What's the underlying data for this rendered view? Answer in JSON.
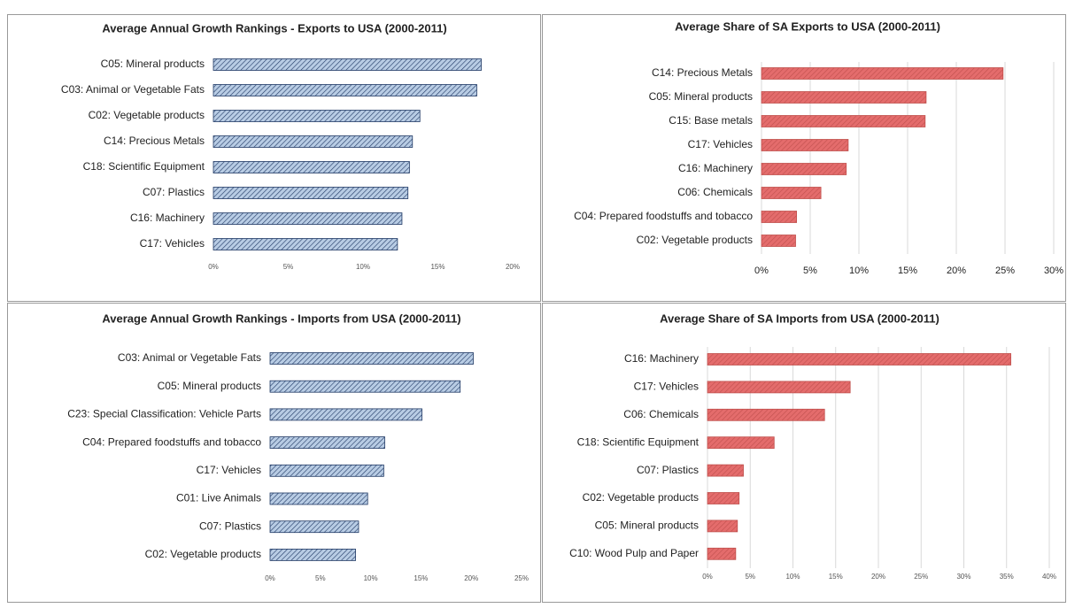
{
  "chart_data": [
    {
      "type": "bar",
      "orientation": "horizontal",
      "title": "Average Annual Growth Rankings - Exports to USA (2000-2011)",
      "categories": [
        "C05: Mineral products",
        "C03: Animal or Vegetable Fats",
        "C02: Vegetable products",
        "C14: Precious Metals",
        "C18: Scientific Equipment",
        "C07: Plastics",
        "C16: Machinery",
        "C17: Vehicles"
      ],
      "values": [
        17.9,
        17.6,
        13.8,
        13.3,
        13.1,
        13.0,
        12.6,
        12.3
      ],
      "color": "#b8cce4",
      "grid": false,
      "xlim": [
        0,
        20
      ],
      "xticks": [
        {
          "value": 0,
          "label": "0%"
        },
        {
          "value": 5,
          "label": "5%"
        },
        {
          "value": 10,
          "label": "10%"
        },
        {
          "value": 15,
          "label": "15%"
        },
        {
          "value": 20,
          "label": "20%"
        }
      ]
    },
    {
      "type": "bar",
      "orientation": "horizontal",
      "title": "Average Share of SA Exports to USA (2000-2011)",
      "categories": [
        "C14: Precious Metals",
        "C05: Mineral products",
        "C15: Base metals",
        "C17: Vehicles",
        "C16: Machinery",
        "C06: Chemicals",
        "C04: Prepared foodstuffs and tobacco",
        "C02: Vegetable products"
      ],
      "values": [
        24.8,
        16.9,
        16.8,
        8.9,
        8.7,
        6.1,
        3.6,
        3.5
      ],
      "color": "#e46c6c",
      "grid": true,
      "xlim": [
        0,
        30
      ],
      "xticks": [
        {
          "value": 0,
          "label": "0%"
        },
        {
          "value": 5,
          "label": "5%"
        },
        {
          "value": 10,
          "label": "10%"
        },
        {
          "value": 15,
          "label": "15%"
        },
        {
          "value": 20,
          "label": "20%"
        },
        {
          "value": 25,
          "label": "25%"
        },
        {
          "value": 30,
          "label": "30%"
        }
      ]
    },
    {
      "type": "bar",
      "orientation": "horizontal",
      "title": "Average Annual Growth Rankings - Imports from USA (2000-2011)",
      "categories": [
        "C03: Animal or Vegetable Fats",
        "C05: Mineral products",
        "C23: Special Classification: Vehicle Parts",
        "C04: Prepared foodstuffs and tobacco",
        "C17: Vehicles",
        "C01: Live Animals",
        "C07: Plastics",
        "C02: Vegetable products"
      ],
      "values": [
        20.2,
        18.9,
        15.1,
        11.4,
        11.3,
        9.7,
        8.8,
        8.5
      ],
      "color": "#b8cce4",
      "grid": false,
      "xlim": [
        0,
        25
      ],
      "xticks": [
        {
          "value": 0,
          "label": "0%"
        },
        {
          "value": 5,
          "label": "5%"
        },
        {
          "value": 10,
          "label": "10%"
        },
        {
          "value": 15,
          "label": "15%"
        },
        {
          "value": 20,
          "label": "20%"
        },
        {
          "value": 25,
          "label": "25%"
        }
      ]
    },
    {
      "type": "bar",
      "orientation": "horizontal",
      "title": "Average Share of SA Imports from USA (2000-2011)",
      "categories": [
        "C16: Machinery",
        "C17: Vehicles",
        "C06: Chemicals",
        "C18: Scientific Equipment",
        "C07: Plastics",
        "C02: Vegetable products",
        "C05: Mineral products",
        "C10: Wood Pulp and Paper"
      ],
      "values": [
        35.5,
        16.7,
        13.7,
        7.8,
        4.2,
        3.7,
        3.5,
        3.3
      ],
      "color": "#e46c6c",
      "grid": true,
      "xlim": [
        0,
        40
      ],
      "xticks": [
        {
          "value": 0,
          "label": "0%"
        },
        {
          "value": 5,
          "label": "5%"
        },
        {
          "value": 10,
          "label": "10%"
        },
        {
          "value": 15,
          "label": "15%"
        },
        {
          "value": 20,
          "label": "20%"
        },
        {
          "value": 25,
          "label": "25%"
        },
        {
          "value": 30,
          "label": "30%"
        },
        {
          "value": 35,
          "label": "35%"
        },
        {
          "value": 40,
          "label": "40%"
        }
      ]
    }
  ]
}
